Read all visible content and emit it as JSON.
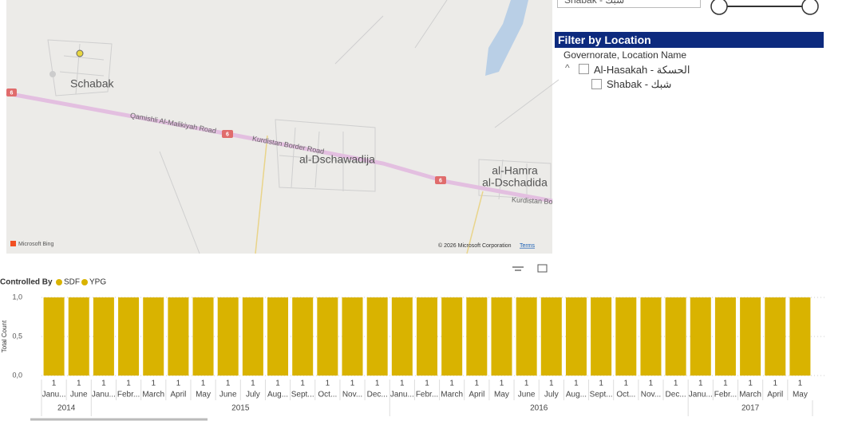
{
  "map": {
    "places": [
      "Schabak",
      "al-Dschawadija",
      "al-Hamra",
      "al-Dschadida"
    ],
    "roads": [
      "Qamishli Al-Malikiyah Road",
      "Kurdistan Border Road",
      "Kurdistan Bo"
    ],
    "shield": "6",
    "provider": "Microsoft Bing",
    "copyright": "© 2026 Microsoft Corporation",
    "terms": "Terms"
  },
  "dropdown": "Shabak - شبك",
  "filter": {
    "title": "Filter by Location",
    "field": "Governorate, Location Name",
    "items": [
      "Al-Hasakah - الحسكة",
      "Shabak - شبك"
    ]
  },
  "chart_data": {
    "type": "bar",
    "legend": {
      "title": "Controlled By",
      "items": [
        {
          "name": "SDF",
          "color": "#d9b300"
        },
        {
          "name": "YPG",
          "color": "#d9b300"
        }
      ]
    },
    "ylabel": "Total Count",
    "color": "#d9b300",
    "categories": [
      "Janu...",
      "June",
      "Janu...",
      "Febr...",
      "March",
      "April",
      "May",
      "June",
      "July",
      "Aug...",
      "Sept...",
      "Oct...",
      "Nov...",
      "Dec...",
      "Janu...",
      "Febr...",
      "March",
      "April",
      "May",
      "June",
      "July",
      "Aug...",
      "Sept...",
      "Oct...",
      "Nov...",
      "Dec...",
      "Janu...",
      "Febr...",
      "March",
      "April",
      "May"
    ],
    "category_years": [
      "2014",
      "2014",
      "2015",
      "2015",
      "2015",
      "2015",
      "2015",
      "2015",
      "2015",
      "2015",
      "2015",
      "2015",
      "2015",
      "2015",
      "2016",
      "2016",
      "2016",
      "2016",
      "2016",
      "2016",
      "2016",
      "2016",
      "2016",
      "2016",
      "2016",
      "2016",
      "2017",
      "2017",
      "2017",
      "2017",
      "2017"
    ],
    "values": [
      1,
      1,
      1,
      1,
      1,
      1,
      1,
      1,
      1,
      1,
      1,
      1,
      1,
      1,
      1,
      1,
      1,
      1,
      1,
      1,
      1,
      1,
      1,
      1,
      1,
      1,
      1,
      1,
      1,
      1,
      1
    ],
    "ylim": [
      0,
      1
    ],
    "yticks": [
      {
        "value": 0,
        "label": "0,0"
      },
      {
        "value": 0.5,
        "label": "0,5"
      },
      {
        "value": 1,
        "label": "1,0"
      }
    ],
    "grid": true
  }
}
